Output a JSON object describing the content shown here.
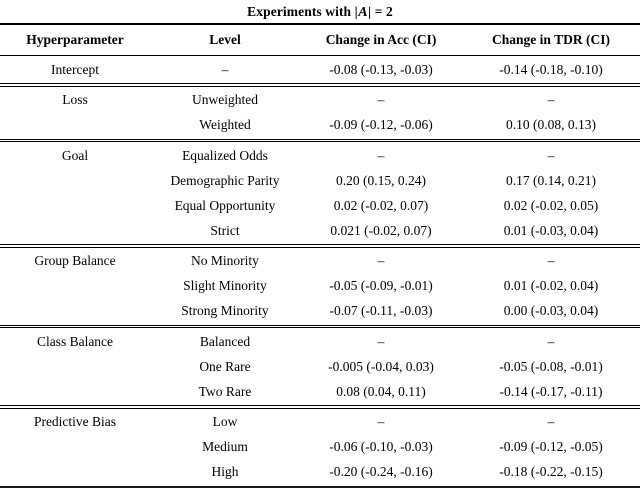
{
  "table": {
    "title_prefix": "Experiments with ",
    "title_bar_open": "|",
    "title_set_symbol": "A",
    "title_bar_close": "|",
    "title_suffix": " = 2",
    "columns": [
      "Hyperparameter",
      "Level",
      "Change in Acc (CI)",
      "Change in TDR (CI)"
    ],
    "placeholder_dash": "–",
    "sections": [
      {
        "hyperparameter": "Intercept",
        "rows": [
          {
            "level": "–",
            "acc": "-0.08 (-0.13, -0.03)",
            "tdr": "-0.14 (-0.18, -0.10)"
          }
        ]
      },
      {
        "hyperparameter": "Loss",
        "rows": [
          {
            "level": "Unweighted",
            "acc": "–",
            "tdr": "–"
          },
          {
            "level": "Weighted",
            "acc": "-0.09 (-0.12, -0.06)",
            "tdr": "0.10 (0.08, 0.13)"
          }
        ]
      },
      {
        "hyperparameter": "Goal",
        "rows": [
          {
            "level": "Equalized Odds",
            "acc": "–",
            "tdr": "–"
          },
          {
            "level": "Demographic Parity",
            "acc": "0.20 (0.15, 0.24)",
            "tdr": "0.17 (0.14, 0.21)"
          },
          {
            "level": "Equal Opportunity",
            "acc": "0.02 (-0.02, 0.07)",
            "tdr": "0.02 (-0.02, 0.05)"
          },
          {
            "level": "Strict",
            "acc": "0.021 (-0.02, 0.07)",
            "tdr": "0.01 (-0.03, 0.04)"
          }
        ]
      },
      {
        "hyperparameter": "Group Balance",
        "rows": [
          {
            "level": "No Minority",
            "acc": "–",
            "tdr": "–"
          },
          {
            "level": "Slight Minority",
            "acc": "-0.05 (-0.09, -0.01)",
            "tdr": "0.01 (-0.02, 0.04)"
          },
          {
            "level": "Strong Minority",
            "acc": "-0.07 (-0.11, -0.03)",
            "tdr": "0.00 (-0.03, 0.04)"
          }
        ]
      },
      {
        "hyperparameter": "Class Balance",
        "rows": [
          {
            "level": "Balanced",
            "acc": "–",
            "tdr": "–"
          },
          {
            "level": "One Rare",
            "acc": "-0.005 (-0.04, 0.03)",
            "tdr": "-0.05 (-0.08, -0.01)"
          },
          {
            "level": "Two Rare",
            "acc": "0.08 (0.04, 0.11)",
            "tdr": "-0.14 (-0.17, -0.11)"
          }
        ]
      },
      {
        "hyperparameter": "Predictive Bias",
        "rows": [
          {
            "level": "Low",
            "acc": "–",
            "tdr": "–"
          },
          {
            "level": "Medium",
            "acc": "-0.06 (-0.10, -0.03)",
            "tdr": "-0.09 (-0.12, -0.05)"
          },
          {
            "level": "High",
            "acc": "-0.20 (-0.24, -0.16)",
            "tdr": "-0.18 (-0.22, -0.15)"
          }
        ]
      }
    ]
  }
}
